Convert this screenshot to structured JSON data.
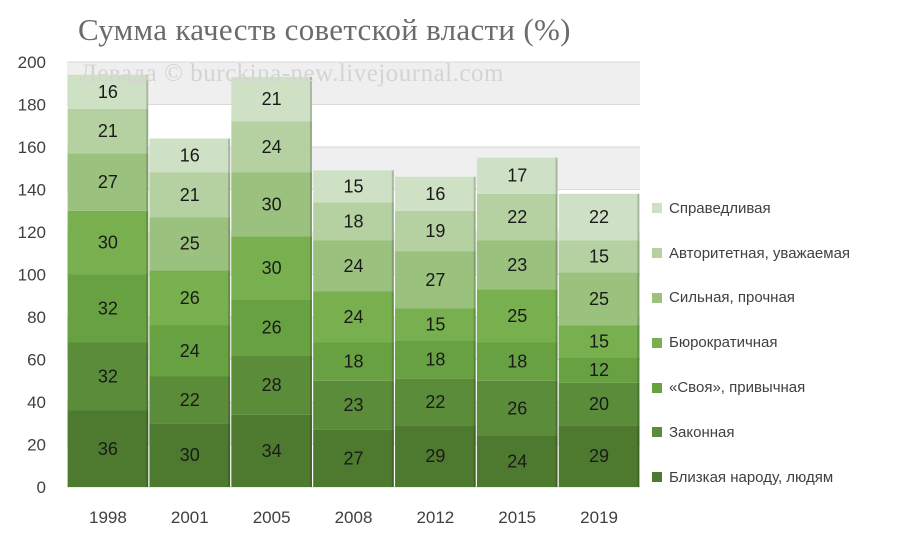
{
  "title": "Сумма качеств советской власти (%)",
  "watermark": "Левада © burckina-new.livejournal.com",
  "chart_data": {
    "type": "bar",
    "stacked": true,
    "title": "Сумма качеств советской власти (%)",
    "categories": [
      "1998",
      "2001",
      "2005",
      "2008",
      "2012",
      "2015",
      "2019"
    ],
    "ylim": [
      0,
      200
    ],
    "yticks": [
      0,
      20,
      40,
      60,
      80,
      100,
      120,
      140,
      160,
      180,
      200
    ],
    "grid": true,
    "legend_position": "right",
    "series": [
      {
        "name": "Близкая народу, людям",
        "values": [
          36,
          30,
          34,
          27,
          29,
          24,
          29
        ],
        "color": "#4e7a2f"
      },
      {
        "name": "Законная",
        "values": [
          32,
          22,
          28,
          23,
          22,
          26,
          20
        ],
        "color": "#5b8c3a"
      },
      {
        "name": "«Своя», привычная",
        "values": [
          32,
          24,
          26,
          18,
          18,
          18,
          12
        ],
        "color": "#68a142"
      },
      {
        "name": "Бюрократичная",
        "values": [
          30,
          26,
          30,
          24,
          15,
          25,
          15
        ],
        "color": "#78b04f"
      },
      {
        "name": "Сильная, прочная",
        "values": [
          27,
          25,
          30,
          24,
          27,
          23,
          25
        ],
        "color": "#9bc17e"
      },
      {
        "name": "Авторитетная, уважаемая",
        "values": [
          21,
          21,
          24,
          18,
          19,
          22,
          15
        ],
        "color": "#b5d1a1"
      },
      {
        "name": "Справедливая",
        "values": [
          16,
          16,
          21,
          15,
          16,
          17,
          22
        ],
        "color": "#cfe1c4"
      }
    ]
  }
}
